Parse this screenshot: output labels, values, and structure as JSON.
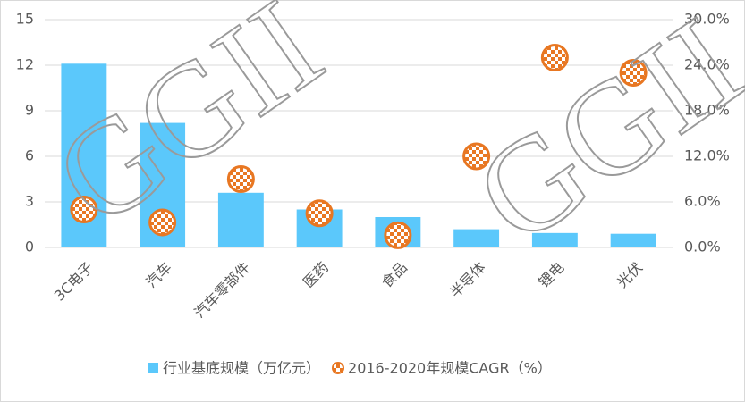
{
  "chart_data": {
    "type": "bar_scatter",
    "watermark": "GGII",
    "categories": [
      "3C电子",
      "汽车",
      "汽车零部件",
      "医药",
      "食品",
      "半导体",
      "锂电",
      "光伏"
    ],
    "series": [
      {
        "name": "行业基底规模（万亿元）",
        "type": "bar",
        "color": "#5bc8fb",
        "values": [
          12.1,
          8.2,
          3.6,
          2.5,
          2.0,
          1.2,
          0.95,
          0.9
        ]
      },
      {
        "name": "2016-2020年规模CAGR（%）",
        "type": "scatter",
        "axis": "y2",
        "color": "#e87722",
        "values": [
          5.0,
          3.3,
          9.0,
          4.5,
          1.6,
          12.0,
          25.0,
          23.0
        ]
      }
    ],
    "ylim": [
      0,
      15
    ],
    "yticks": [
      0,
      3,
      6,
      9,
      12,
      15
    ],
    "y2lim": [
      0,
      30
    ],
    "y2ticks": [
      {
        "value": 0,
        "label": "0.0%"
      },
      {
        "value": 6,
        "label": "6.0%"
      },
      {
        "value": 12,
        "label": "12.0%"
      },
      {
        "value": 18,
        "label": "18.0%"
      },
      {
        "value": 24,
        "label": "24.0%"
      },
      {
        "value": 30,
        "label": "30.0%"
      }
    ],
    "grid": true,
    "legend": "bottom"
  }
}
